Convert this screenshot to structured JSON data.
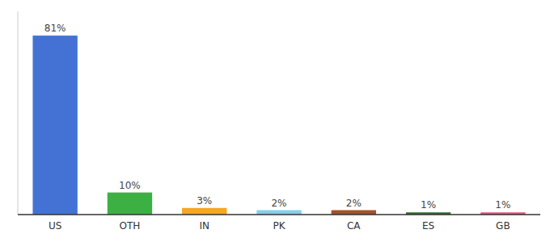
{
  "chart_data": {
    "type": "bar",
    "categories": [
      "US",
      "OTH",
      "IN",
      "PK",
      "CA",
      "ES",
      "GB"
    ],
    "values": [
      81,
      10,
      3,
      2,
      2,
      1,
      1
    ],
    "value_labels": [
      "81%",
      "10%",
      "3%",
      "2%",
      "2%",
      "1%",
      "1%"
    ],
    "colors": [
      "#4472d4",
      "#3cb043",
      "#f5a623",
      "#87ceeb",
      "#a0522d",
      "#2e6b2e",
      "#e75480"
    ],
    "ylim": [
      0,
      92
    ],
    "data_labels": true,
    "tick_labels": "x",
    "grid": false
  }
}
